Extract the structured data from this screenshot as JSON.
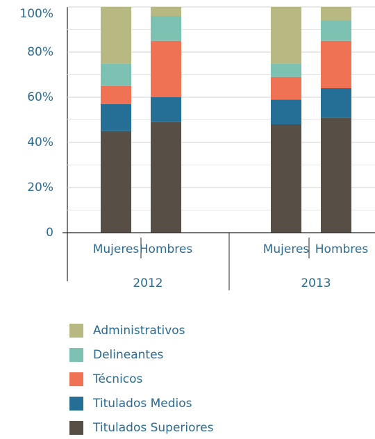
{
  "chart_data": {
    "type": "stacked_bar",
    "categories": [
      "Mujeres",
      "Hombres",
      "Mujeres",
      "Hombres"
    ],
    "groups": [
      "2012",
      "2013"
    ],
    "series": [
      {
        "name": "Administrativos",
        "color": "#b8b882",
        "values": [
          25,
          4,
          25,
          6
        ]
      },
      {
        "name": "Delineantes",
        "color": "#7cc1b1",
        "values": [
          10,
          11,
          6,
          9
        ]
      },
      {
        "name": "Técnicos",
        "color": "#ef7254",
        "values": [
          8,
          25,
          10,
          21
        ]
      },
      {
        "name": "Titulados Medios",
        "color": "#256f97",
        "values": [
          12,
          11,
          11,
          13
        ]
      },
      {
        "name": "Titulados Superiores",
        "color": "#574f46",
        "values": [
          45,
          49,
          48,
          51
        ]
      }
    ],
    "ylim": [
      0,
      100
    ],
    "yticks": [
      0,
      {
        "value": 20,
        "label": "20%"
      },
      {
        "value": 40,
        "label": "40%"
      },
      {
        "value": 60,
        "label": "60%"
      },
      {
        "value": 80,
        "label": "80%"
      },
      {
        "value": 100,
        "label": "100%"
      }
    ],
    "minor_yticks": [
      10,
      30,
      50,
      70,
      90
    ],
    "grid": true
  }
}
